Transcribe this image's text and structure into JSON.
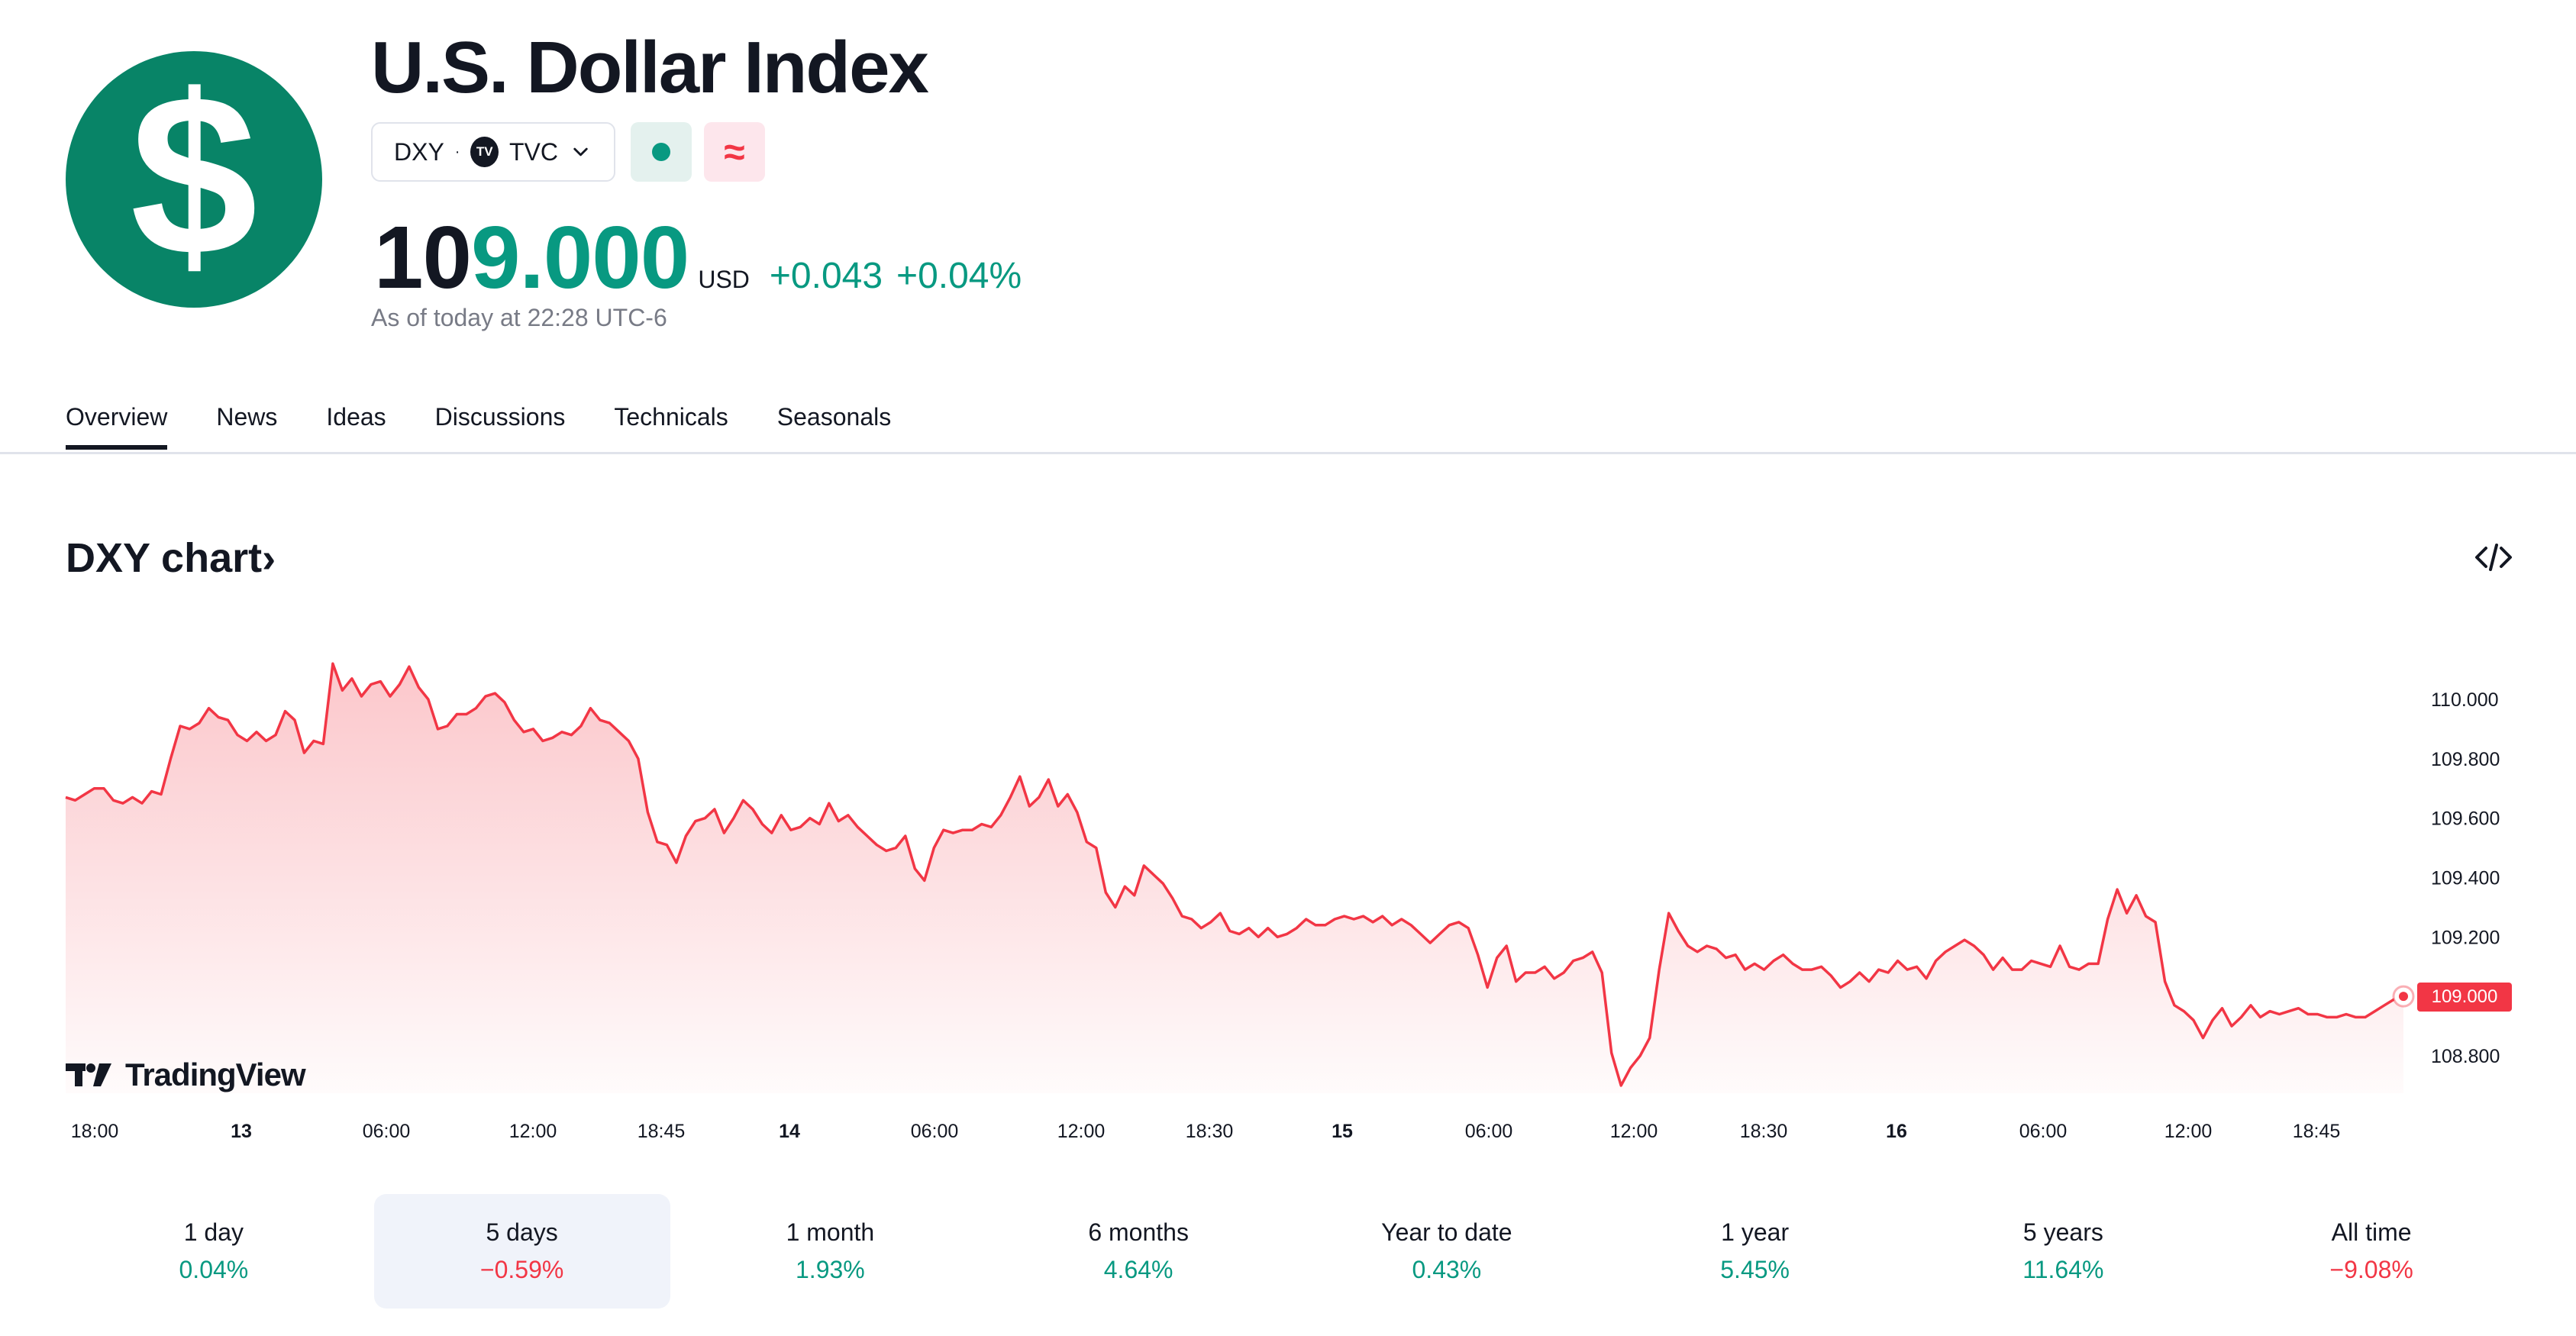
{
  "header": {
    "logo_symbol": "$",
    "title": "U.S. Dollar Index",
    "symbol": "DXY",
    "separator": "·",
    "exchange_badge": "TV",
    "exchange": "TVC",
    "delayed_symbol": "≈"
  },
  "quote": {
    "price_part1": "10",
    "price_part2": "9.000",
    "currency": "USD",
    "change": "+0.043",
    "change_percent": "+0.04%",
    "as_of": "As of today at 22:28 UTC-6"
  },
  "tabs": [
    {
      "label": "Overview",
      "active": true
    },
    {
      "label": "News"
    },
    {
      "label": "Ideas"
    },
    {
      "label": "Discussions"
    },
    {
      "label": "Technicals"
    },
    {
      "label": "Seasonals"
    }
  ],
  "chart_header": {
    "title": "DXY chart",
    "arrow": "›"
  },
  "colors": {
    "accent_green": "#089981",
    "line_red": "#f23645",
    "logo_green": "#088467"
  },
  "icons": [
    "embed-code-icon",
    "chevron-down-icon",
    "tradingview-logo-icon",
    "status-dot-icon"
  ],
  "branding": {
    "watermark": "TradingView"
  },
  "chart_data": {
    "type": "area",
    "y_ticks": [
      "110.000",
      "109.800",
      "109.600",
      "109.400",
      "109.200",
      "108.800"
    ],
    "y_range": [
      108.68,
      110.16
    ],
    "last_price_label": "109.000",
    "x_ticks": [
      {
        "label": "18:00",
        "bold": false
      },
      {
        "label": "13",
        "bold": true
      },
      {
        "label": "06:00",
        "bold": false
      },
      {
        "label": "12:00",
        "bold": false
      },
      {
        "label": "18:45",
        "bold": false
      },
      {
        "label": "14",
        "bold": true
      },
      {
        "label": "06:00",
        "bold": false
      },
      {
        "label": "12:00",
        "bold": false
      },
      {
        "label": "18:30",
        "bold": false
      },
      {
        "label": "15",
        "bold": true
      },
      {
        "label": "06:00",
        "bold": false
      },
      {
        "label": "12:00",
        "bold": false
      },
      {
        "label": "18:30",
        "bold": false
      },
      {
        "label": "16",
        "bold": true
      },
      {
        "label": "06:00",
        "bold": false
      },
      {
        "label": "12:00",
        "bold": false
      },
      {
        "label": "18:45",
        "bold": false
      }
    ],
    "series": [
      {
        "values": [
          109.67,
          109.66,
          109.68,
          109.7,
          109.7,
          109.66,
          109.65,
          109.67,
          109.65,
          109.69,
          109.68,
          109.8,
          109.91,
          109.9,
          109.92,
          109.97,
          109.94,
          109.93,
          109.88,
          109.86,
          109.89,
          109.86,
          109.88,
          109.96,
          109.93,
          109.82,
          109.86,
          109.85,
          110.12,
          110.03,
          110.07,
          110.01,
          110.05,
          110.06,
          110.01,
          110.05,
          110.11,
          110.04,
          110.0,
          109.9,
          109.91,
          109.95,
          109.95,
          109.97,
          110.01,
          110.02,
          109.99,
          109.93,
          109.89,
          109.9,
          109.86,
          109.87,
          109.89,
          109.88,
          109.91,
          109.97,
          109.93,
          109.92,
          109.89,
          109.86,
          109.8,
          109.62,
          109.52,
          109.51,
          109.45,
          109.54,
          109.59,
          109.6,
          109.63,
          109.55,
          109.6,
          109.66,
          109.63,
          109.58,
          109.55,
          109.61,
          109.56,
          109.57,
          109.6,
          109.58,
          109.65,
          109.59,
          109.61,
          109.57,
          109.54,
          109.51,
          109.49,
          109.5,
          109.54,
          109.43,
          109.39,
          109.5,
          109.56,
          109.55,
          109.56,
          109.56,
          109.58,
          109.57,
          109.61,
          109.67,
          109.74,
          109.64,
          109.67,
          109.73,
          109.64,
          109.68,
          109.62,
          109.52,
          109.5,
          109.35,
          109.3,
          109.37,
          109.34,
          109.44,
          109.41,
          109.38,
          109.33,
          109.27,
          109.26,
          109.23,
          109.25,
          109.28,
          109.22,
          109.21,
          109.23,
          109.2,
          109.23,
          109.2,
          109.21,
          109.23,
          109.26,
          109.24,
          109.24,
          109.26,
          109.27,
          109.26,
          109.27,
          109.25,
          109.27,
          109.24,
          109.26,
          109.24,
          109.21,
          109.18,
          109.21,
          109.24,
          109.25,
          109.23,
          109.14,
          109.03,
          109.13,
          109.17,
          109.05,
          109.08,
          109.08,
          109.1,
          109.06,
          109.08,
          109.12,
          109.13,
          109.15,
          109.08,
          108.81,
          108.7,
          108.76,
          108.8,
          108.86,
          109.09,
          109.28,
          109.22,
          109.17,
          109.15,
          109.17,
          109.16,
          109.13,
          109.14,
          109.09,
          109.11,
          109.09,
          109.12,
          109.14,
          109.11,
          109.09,
          109.09,
          109.1,
          109.07,
          109.03,
          109.05,
          109.08,
          109.05,
          109.09,
          109.08,
          109.12,
          109.09,
          109.1,
          109.06,
          109.12,
          109.15,
          109.17,
          109.19,
          109.17,
          109.14,
          109.09,
          109.13,
          109.09,
          109.09,
          109.12,
          109.11,
          109.1,
          109.17,
          109.1,
          109.09,
          109.11,
          109.11,
          109.26,
          109.36,
          109.28,
          109.34,
          109.27,
          109.25,
          109.05,
          108.97,
          108.95,
          108.92,
          108.86,
          108.92,
          108.96,
          108.9,
          108.93,
          108.97,
          108.93,
          108.95,
          108.94,
          108.95,
          108.96,
          108.94,
          108.94,
          108.93,
          108.93,
          108.94,
          108.93,
          108.93,
          108.95,
          108.97,
          108.99,
          109.0
        ]
      }
    ]
  },
  "periods": [
    {
      "label": "1 day",
      "value": "0.04%",
      "sign": "pos"
    },
    {
      "label": "5 days",
      "value": "−0.59%",
      "sign": "neg",
      "selected": true
    },
    {
      "label": "1 month",
      "value": "1.93%",
      "sign": "pos"
    },
    {
      "label": "6 months",
      "value": "4.64%",
      "sign": "pos"
    },
    {
      "label": "Year to date",
      "value": "0.43%",
      "sign": "pos"
    },
    {
      "label": "1 year",
      "value": "5.45%",
      "sign": "pos"
    },
    {
      "label": "5 years",
      "value": "11.64%",
      "sign": "pos"
    },
    {
      "label": "All time",
      "value": "−9.08%",
      "sign": "neg"
    }
  ]
}
